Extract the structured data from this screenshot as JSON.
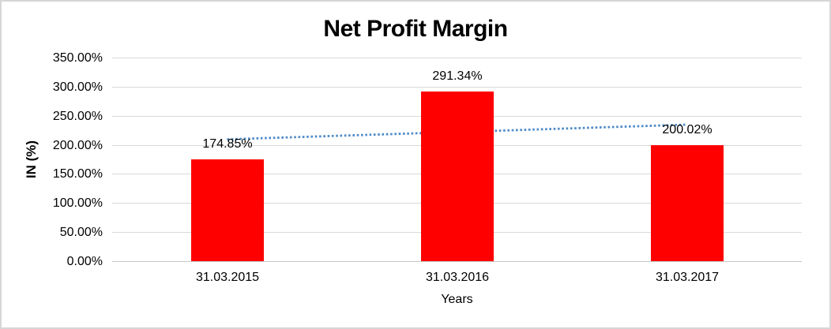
{
  "chart_data": {
    "type": "bar",
    "title": "Net Profit Margin",
    "xlabel": "Years",
    "ylabel": "IN (%)",
    "categories": [
      "31.03.2015",
      "31.03.2016",
      "31.03.2017"
    ],
    "values": [
      174.85,
      291.34,
      200.02
    ],
    "value_labels": [
      "174.85%",
      "291.34%",
      "200.02%"
    ],
    "ytick_labels": [
      "0.00%",
      "50.00%",
      "100.00%",
      "150.00%",
      "200.00%",
      "250.00%",
      "300.00%",
      "350.00%"
    ],
    "ylim": [
      0,
      350
    ],
    "ytick_step": 50,
    "grid": true,
    "legend_position": "none",
    "trendline": {
      "type": "linear",
      "style": "dotted"
    },
    "colors": {
      "bar": "#FF0000",
      "trendline": "#4E8AC8",
      "gridline": "#D9D9D9",
      "axis_line": "#C6C6C6",
      "text": "#000000",
      "frame_border": "#D6D6D6",
      "background": "#FFFFFF"
    }
  }
}
